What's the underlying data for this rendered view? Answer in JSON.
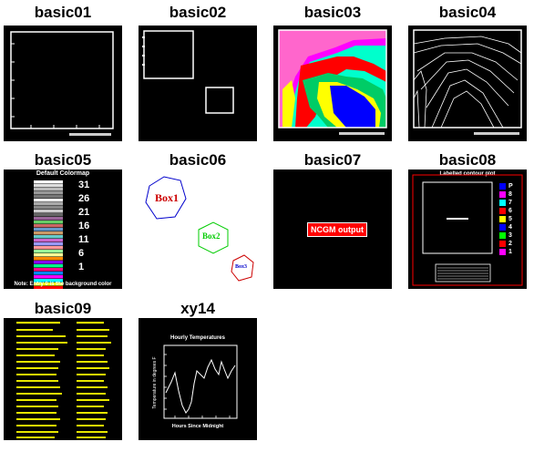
{
  "gallery": {
    "items": [
      {
        "name": "basic01"
      },
      {
        "name": "basic02"
      },
      {
        "name": "basic03"
      },
      {
        "name": "basic04"
      },
      {
        "name": "basic05",
        "heading": "Default Colormap",
        "scale": [
          "31",
          "26",
          "21",
          "16",
          "11",
          "6",
          "1"
        ],
        "note": "Note: Entry 0 is the background color"
      },
      {
        "name": "basic06",
        "boxes": [
          "Box1",
          "Box2",
          "Box3"
        ]
      },
      {
        "name": "basic07",
        "label": "NCGM output"
      },
      {
        "name": "basic08",
        "heading": "Labelled contour plot",
        "legend": [
          "P",
          "8",
          "7",
          "6",
          "5",
          "4",
          "3",
          "2",
          "1"
        ]
      },
      {
        "name": "basic09"
      },
      {
        "name": "xy14",
        "heading": "Hourly Temperatures",
        "xlabel": "Hours Since Midnight",
        "ylabel": "Temperature in degrees F"
      }
    ]
  },
  "colors": {
    "background": "#000000",
    "foreground": "#ffffff",
    "basic09_text": "#ffff00",
    "basic06_box1": "#0000cc",
    "basic06_box2": "#00cc00",
    "basic06_box3": "#cc0000",
    "basic07_box": "#ff0000",
    "basic08_frame": "#ff0000"
  }
}
